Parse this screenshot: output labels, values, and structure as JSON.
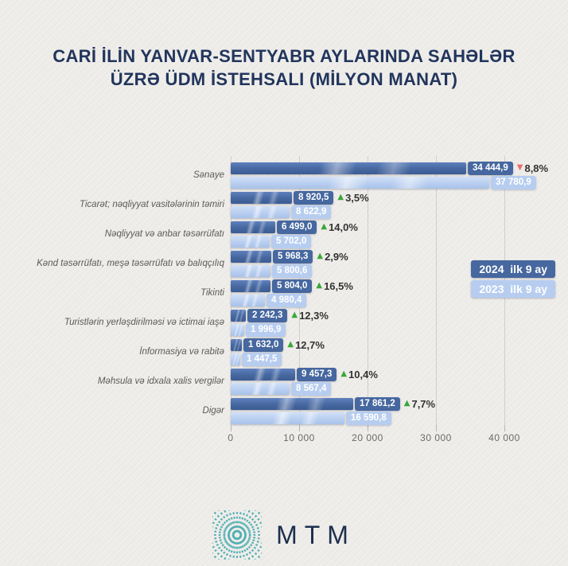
{
  "title": {
    "line1": "CARİ İLİN YANVAR-SENTYABR AYLARINDA SAHƏLƏR",
    "line2": "ÜZRƏ ÜDM İSTEHSALI (MİLYON MANAT)"
  },
  "legend": {
    "item2024": "2024  ilk 9 ay",
    "item2023": "2023  ilk 9 ay"
  },
  "colors": {
    "title": "#21355c",
    "bar2024": "#46679f",
    "bar2023": "#b7cdf0",
    "up": "#3aa73a",
    "down": "#e4736b",
    "logo_teal": "#4fafb2",
    "logo_text": "#1d2f4e"
  },
  "footer": {
    "logo_text": "MTM"
  },
  "chart_data": {
    "type": "bar",
    "orientation": "horizontal",
    "title": "Cari ilin yanvar-sentyabr aylarında sahələr üzrə ÜDM istehsalı (milyon manat)",
    "xlabel": "milyon manat",
    "ylabel": "",
    "grid": true,
    "legend_position": "right",
    "xlim": [
      0,
      47000
    ],
    "xticks": {
      "values": [
        0,
        10000,
        20000,
        30000,
        40000
      ],
      "labels": [
        "0",
        "10 000",
        "20 000",
        "30 000",
        "40 000"
      ]
    },
    "categories": [
      "Sənaye",
      "Ticarət; nəqliyyat vasitələrinin təmiri",
      "Nəqliyyat və anbar təsərrüfatı",
      "Kənd təsərrüfatı, meşə təsərrüfatı və balıqçılıq",
      "Tikinti",
      "Turistlərin yerləşdirilməsi və ictimai iaşə",
      "İnformasiya və rabitə",
      "Məhsula və idxala xalis vergilər",
      "Digər"
    ],
    "series": [
      {
        "name": "2024 ilk 9 ay",
        "values": [
          34444.9,
          8920.5,
          6499.0,
          5968.3,
          5804.0,
          2242.3,
          1632.0,
          9457.3,
          17861.2
        ],
        "labels": [
          "34 444,9",
          "8 920,5",
          "6 499,0",
          "5 968,3",
          "5 804,0",
          "2 242,3",
          "1 632,0",
          "9 457,3",
          "17 861,2"
        ]
      },
      {
        "name": "2023 ilk 9 ay",
        "values": [
          37780.9,
          8622.9,
          5702.0,
          5800.6,
          4980.4,
          1996.9,
          1447.5,
          8567.4,
          16590.8
        ],
        "labels": [
          "37 780,9",
          "8 622,9",
          "5 702,0",
          "5 800,6",
          "4 980,4",
          "1 996,9",
          "1 447,5",
          "8 567,4",
          "16 590,8"
        ]
      }
    ],
    "changes": [
      {
        "text": "8,8%",
        "direction": "down"
      },
      {
        "text": "3,5%",
        "direction": "up"
      },
      {
        "text": "14,0%",
        "direction": "up"
      },
      {
        "text": "2,9%",
        "direction": "up"
      },
      {
        "text": "16,5%",
        "direction": "up"
      },
      {
        "text": "12,3%",
        "direction": "up"
      },
      {
        "text": "12,7%",
        "direction": "up"
      },
      {
        "text": "10,4%",
        "direction": "up"
      },
      {
        "text": "7,7%",
        "direction": "up"
      }
    ]
  }
}
